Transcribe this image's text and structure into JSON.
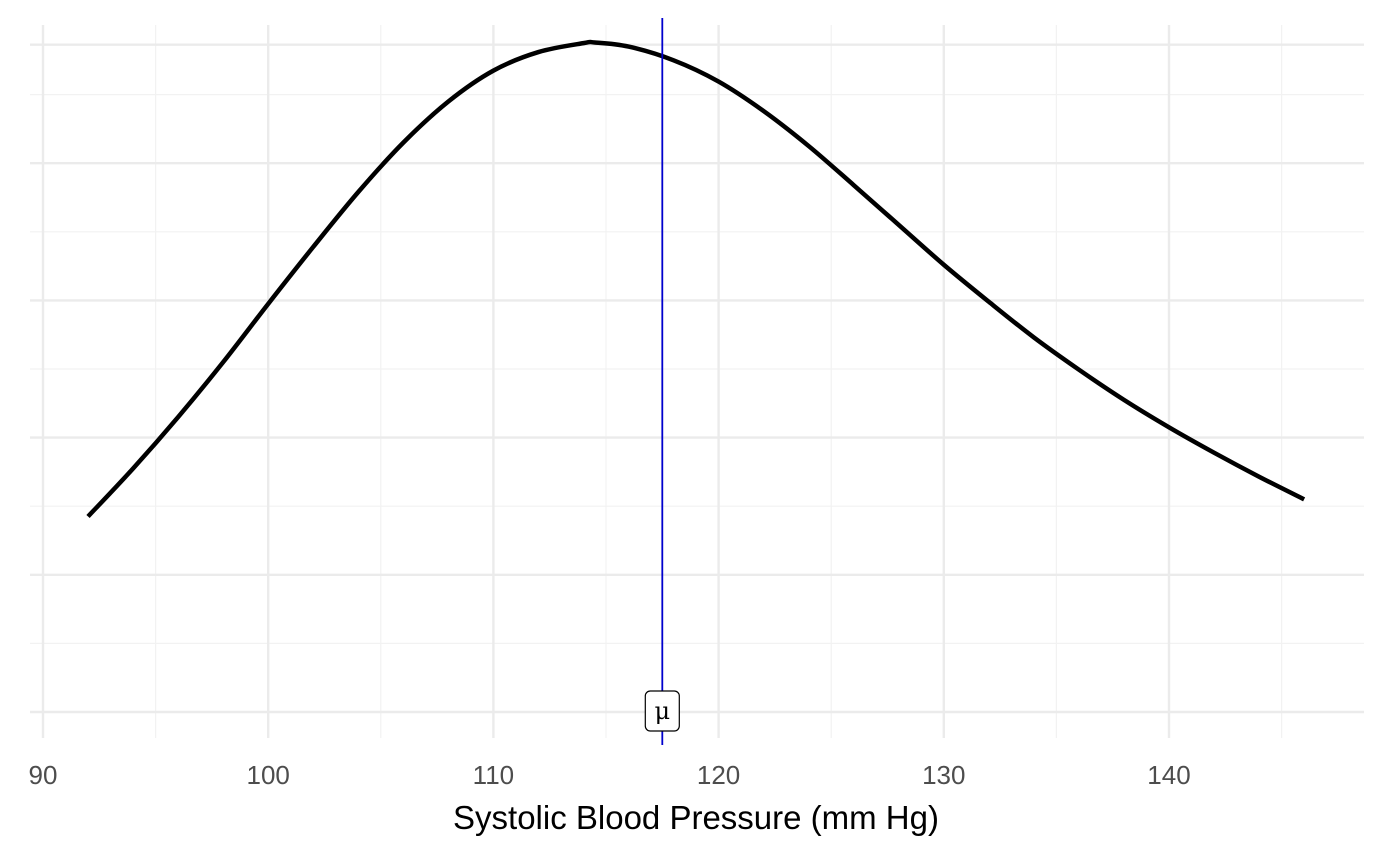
{
  "chart_data": {
    "type": "line",
    "title": "",
    "xlabel": "Systolic Blood Pressure (mm Hg)",
    "ylabel": "",
    "xlim": [
      90,
      148
    ],
    "ylim": [
      0,
      1.0
    ],
    "x_ticks": [
      90,
      100,
      110,
      120,
      130,
      140
    ],
    "x_tick_labels": [
      "90",
      "100",
      "110",
      "120",
      "130",
      "140"
    ],
    "y_tick_labels": [],
    "grid": true,
    "series": [
      {
        "color": "#000000",
        "x": [
          92,
          94,
          96,
          98,
          100,
          102,
          104,
          106,
          108,
          110,
          112,
          114,
          114.5,
          116,
          118,
          120,
          122,
          124,
          126,
          128,
          130,
          132,
          134,
          136,
          138,
          140,
          142,
          144,
          146
        ],
        "y": [
          0.285,
          0.355,
          0.43,
          0.51,
          0.595,
          0.678,
          0.758,
          0.83,
          0.89,
          0.935,
          0.962,
          0.975,
          0.976,
          0.97,
          0.95,
          0.919,
          0.876,
          0.825,
          0.768,
          0.71,
          0.652,
          0.598,
          0.546,
          0.499,
          0.455,
          0.415,
          0.378,
          0.343,
          0.31
        ]
      }
    ],
    "annotations": [
      {
        "type": "vline",
        "x": 117.5,
        "color": "#0000cd",
        "label": "μ"
      }
    ]
  }
}
